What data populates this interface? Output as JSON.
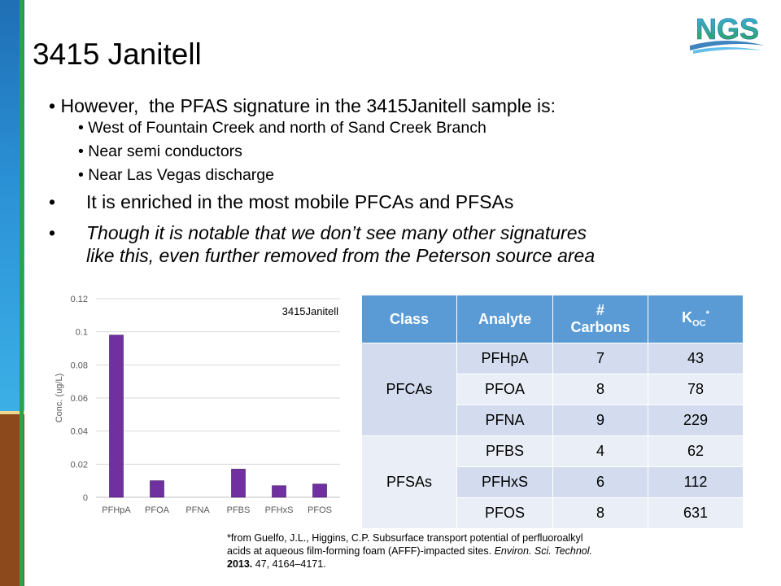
{
  "title": "3415 Janitell",
  "logo_text": "NGS",
  "bullets": {
    "main": "However,  the PFAS signature in the 3415Janitell sample is:",
    "sub": [
      "West of Fountain Creek and north of Sand Creek Branch",
      "Near semi conductors",
      "Near Las Vegas discharge"
    ],
    "point2": "It is enriched in the most mobile PFCAs and PFSAs",
    "point3_line1": "Though it is notable that we don’t see many other signatures",
    "point3_line2": "like this, even further removed from the Peterson source area"
  },
  "chart_data": {
    "type": "bar",
    "title": "3415Janitell",
    "categories": [
      "PFHpA",
      "PFOA",
      "PFNA",
      "PFBS",
      "PFHxS",
      "PFOS"
    ],
    "values": [
      0.098,
      0.01,
      0,
      0.017,
      0.007,
      0.008
    ],
    "ylabel": "Conc.  (ug/L)",
    "xlabel": "",
    "ylim": [
      0,
      0.12
    ],
    "yticks": [
      "0",
      "0.02",
      "0.04",
      "0.06",
      "0.08",
      "0.1",
      "0.12"
    ],
    "grid": true,
    "bar_color": "#7030a0"
  },
  "table": {
    "headers": {
      "class": "Class",
      "analyte": "Analyte",
      "carbons_line1": "#",
      "carbons_line2": "Carbons",
      "koc_main": "K",
      "koc_sub": "OC",
      "koc_sup": "*"
    },
    "groups": [
      {
        "class": "PFCAs",
        "rows": [
          {
            "analyte": "PFHpA",
            "carbons": "7",
            "koc": "43"
          },
          {
            "analyte": "PFOA",
            "carbons": "8",
            "koc": "78"
          },
          {
            "analyte": "PFNA",
            "carbons": "9",
            "koc": "229"
          }
        ]
      },
      {
        "class": "PFSAs",
        "rows": [
          {
            "analyte": "PFBS",
            "carbons": "4",
            "koc": "62"
          },
          {
            "analyte": "PFHxS",
            "carbons": "6",
            "koc": "112"
          },
          {
            "analyte": "PFOS",
            "carbons": "8",
            "koc": "631"
          }
        ]
      }
    ]
  },
  "footnote": {
    "part1": "*from Guelfo, J.L., Higgins, C.P. Subsurface transport potential of perfluoroalkyl acids at aqueous film-forming foam (AFFF)-impacted sites. ",
    "journal": "Environ. Sci. Technol.",
    "year": "2013.",
    "part2": " 47, 4164–4171."
  },
  "colors": {
    "accent_blue": "#5b9bd5",
    "row_dark": "#d2dcee",
    "row_light": "#eaeff7",
    "bar": "#7030a0"
  }
}
